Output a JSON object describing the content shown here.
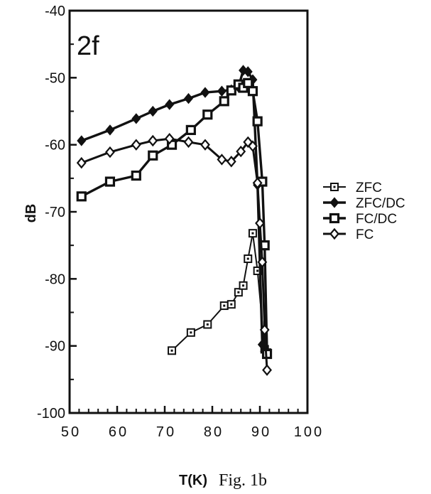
{
  "chart_data": {
    "type": "line",
    "panel_label": "2f",
    "xlabel": "T(K)",
    "ylabel": "dB",
    "caption": "Fig. 1b",
    "xlim": [
      50,
      100
    ],
    "ylim": [
      -100,
      -40
    ],
    "x_ticks": [
      50,
      60,
      70,
      80,
      90,
      100
    ],
    "y_ticks": [
      -40,
      -50,
      -60,
      -70,
      -80,
      -90,
      -100
    ],
    "grid": false,
    "legend_position": "right",
    "series": [
      {
        "name": "ZFC",
        "marker": "square-open-dot",
        "x": [
          71.5,
          75.5,
          79,
          82.5,
          84,
          85.5,
          86.5,
          87.5,
          88.5,
          89.5,
          91,
          91.5
        ],
        "y": [
          -90.7,
          -88,
          -86.8,
          -84,
          -83.8,
          -82,
          -81,
          -77,
          -73.2,
          -78.8,
          -90.5,
          -91
        ]
      },
      {
        "name": "ZFC/DC",
        "marker": "diamond-filled",
        "x": [
          52.5,
          58.5,
          64,
          67.5,
          71,
          75,
          78.5,
          82,
          84,
          85.5,
          86.5,
          87.5,
          88.5,
          89.5,
          90.5,
          91
        ],
        "y": [
          -59.4,
          -57.8,
          -56.1,
          -55,
          -54,
          -53.1,
          -52.2,
          -52,
          -51.8,
          -51.4,
          -48.9,
          -49.1,
          -50.3,
          -66,
          -89.8,
          -90.8
        ]
      },
      {
        "name": "FC/DC",
        "marker": "square-open-thick",
        "x": [
          52.5,
          58.5,
          64,
          67.5,
          71.5,
          75.5,
          79,
          82.5,
          84,
          85.5,
          86.5,
          87.5,
          88.5,
          89.5,
          90.5,
          91,
          91.5
        ],
        "y": [
          -67.7,
          -65.5,
          -64.6,
          -61.6,
          -60,
          -57.8,
          -55.5,
          -53.5,
          -51.9,
          -51,
          -51.5,
          -50.8,
          -52,
          -56.5,
          -65.5,
          -75,
          -91.2
        ]
      },
      {
        "name": "FC",
        "marker": "diamond-open",
        "x": [
          52.5,
          58.5,
          64,
          67.5,
          71,
          75,
          78.5,
          82,
          84,
          86,
          87.5,
          88.5,
          89.5,
          90,
          90.5,
          91,
          91.5
        ],
        "y": [
          -62.7,
          -61.1,
          -60,
          -59.4,
          -59.1,
          -59.6,
          -60,
          -62.2,
          -62.5,
          -61,
          -59.6,
          -60.2,
          -65.7,
          -71.7,
          -77.5,
          -87.6,
          -93.6
        ]
      }
    ]
  }
}
